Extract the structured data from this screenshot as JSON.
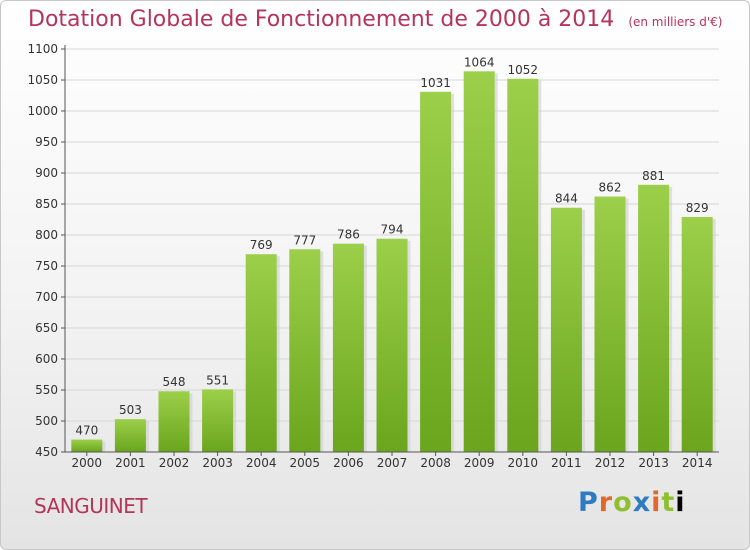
{
  "chart_data": {
    "type": "bar",
    "title": "Dotation Globale de Fonctionnement de 2000 à 2014",
    "subtitle": "(en milliers d'€)",
    "categories": [
      "2000",
      "2001",
      "2002",
      "2003",
      "2004",
      "2005",
      "2006",
      "2007",
      "2008",
      "2009",
      "2010",
      "2011",
      "2012",
      "2013",
      "2014"
    ],
    "values": [
      470,
      503,
      548,
      551,
      769,
      777,
      786,
      794,
      1031,
      1064,
      1052,
      844,
      862,
      881,
      829
    ],
    "ylim": [
      450,
      1100
    ],
    "yticks": [
      450,
      500,
      550,
      600,
      650,
      700,
      750,
      800,
      850,
      900,
      950,
      1000,
      1050,
      1100
    ],
    "grid": true,
    "bar_color": "#8cc63f"
  },
  "commune": "SANGUINET",
  "logo": [
    "P",
    "r",
    "o",
    "x",
    "i",
    "t",
    "i"
  ]
}
